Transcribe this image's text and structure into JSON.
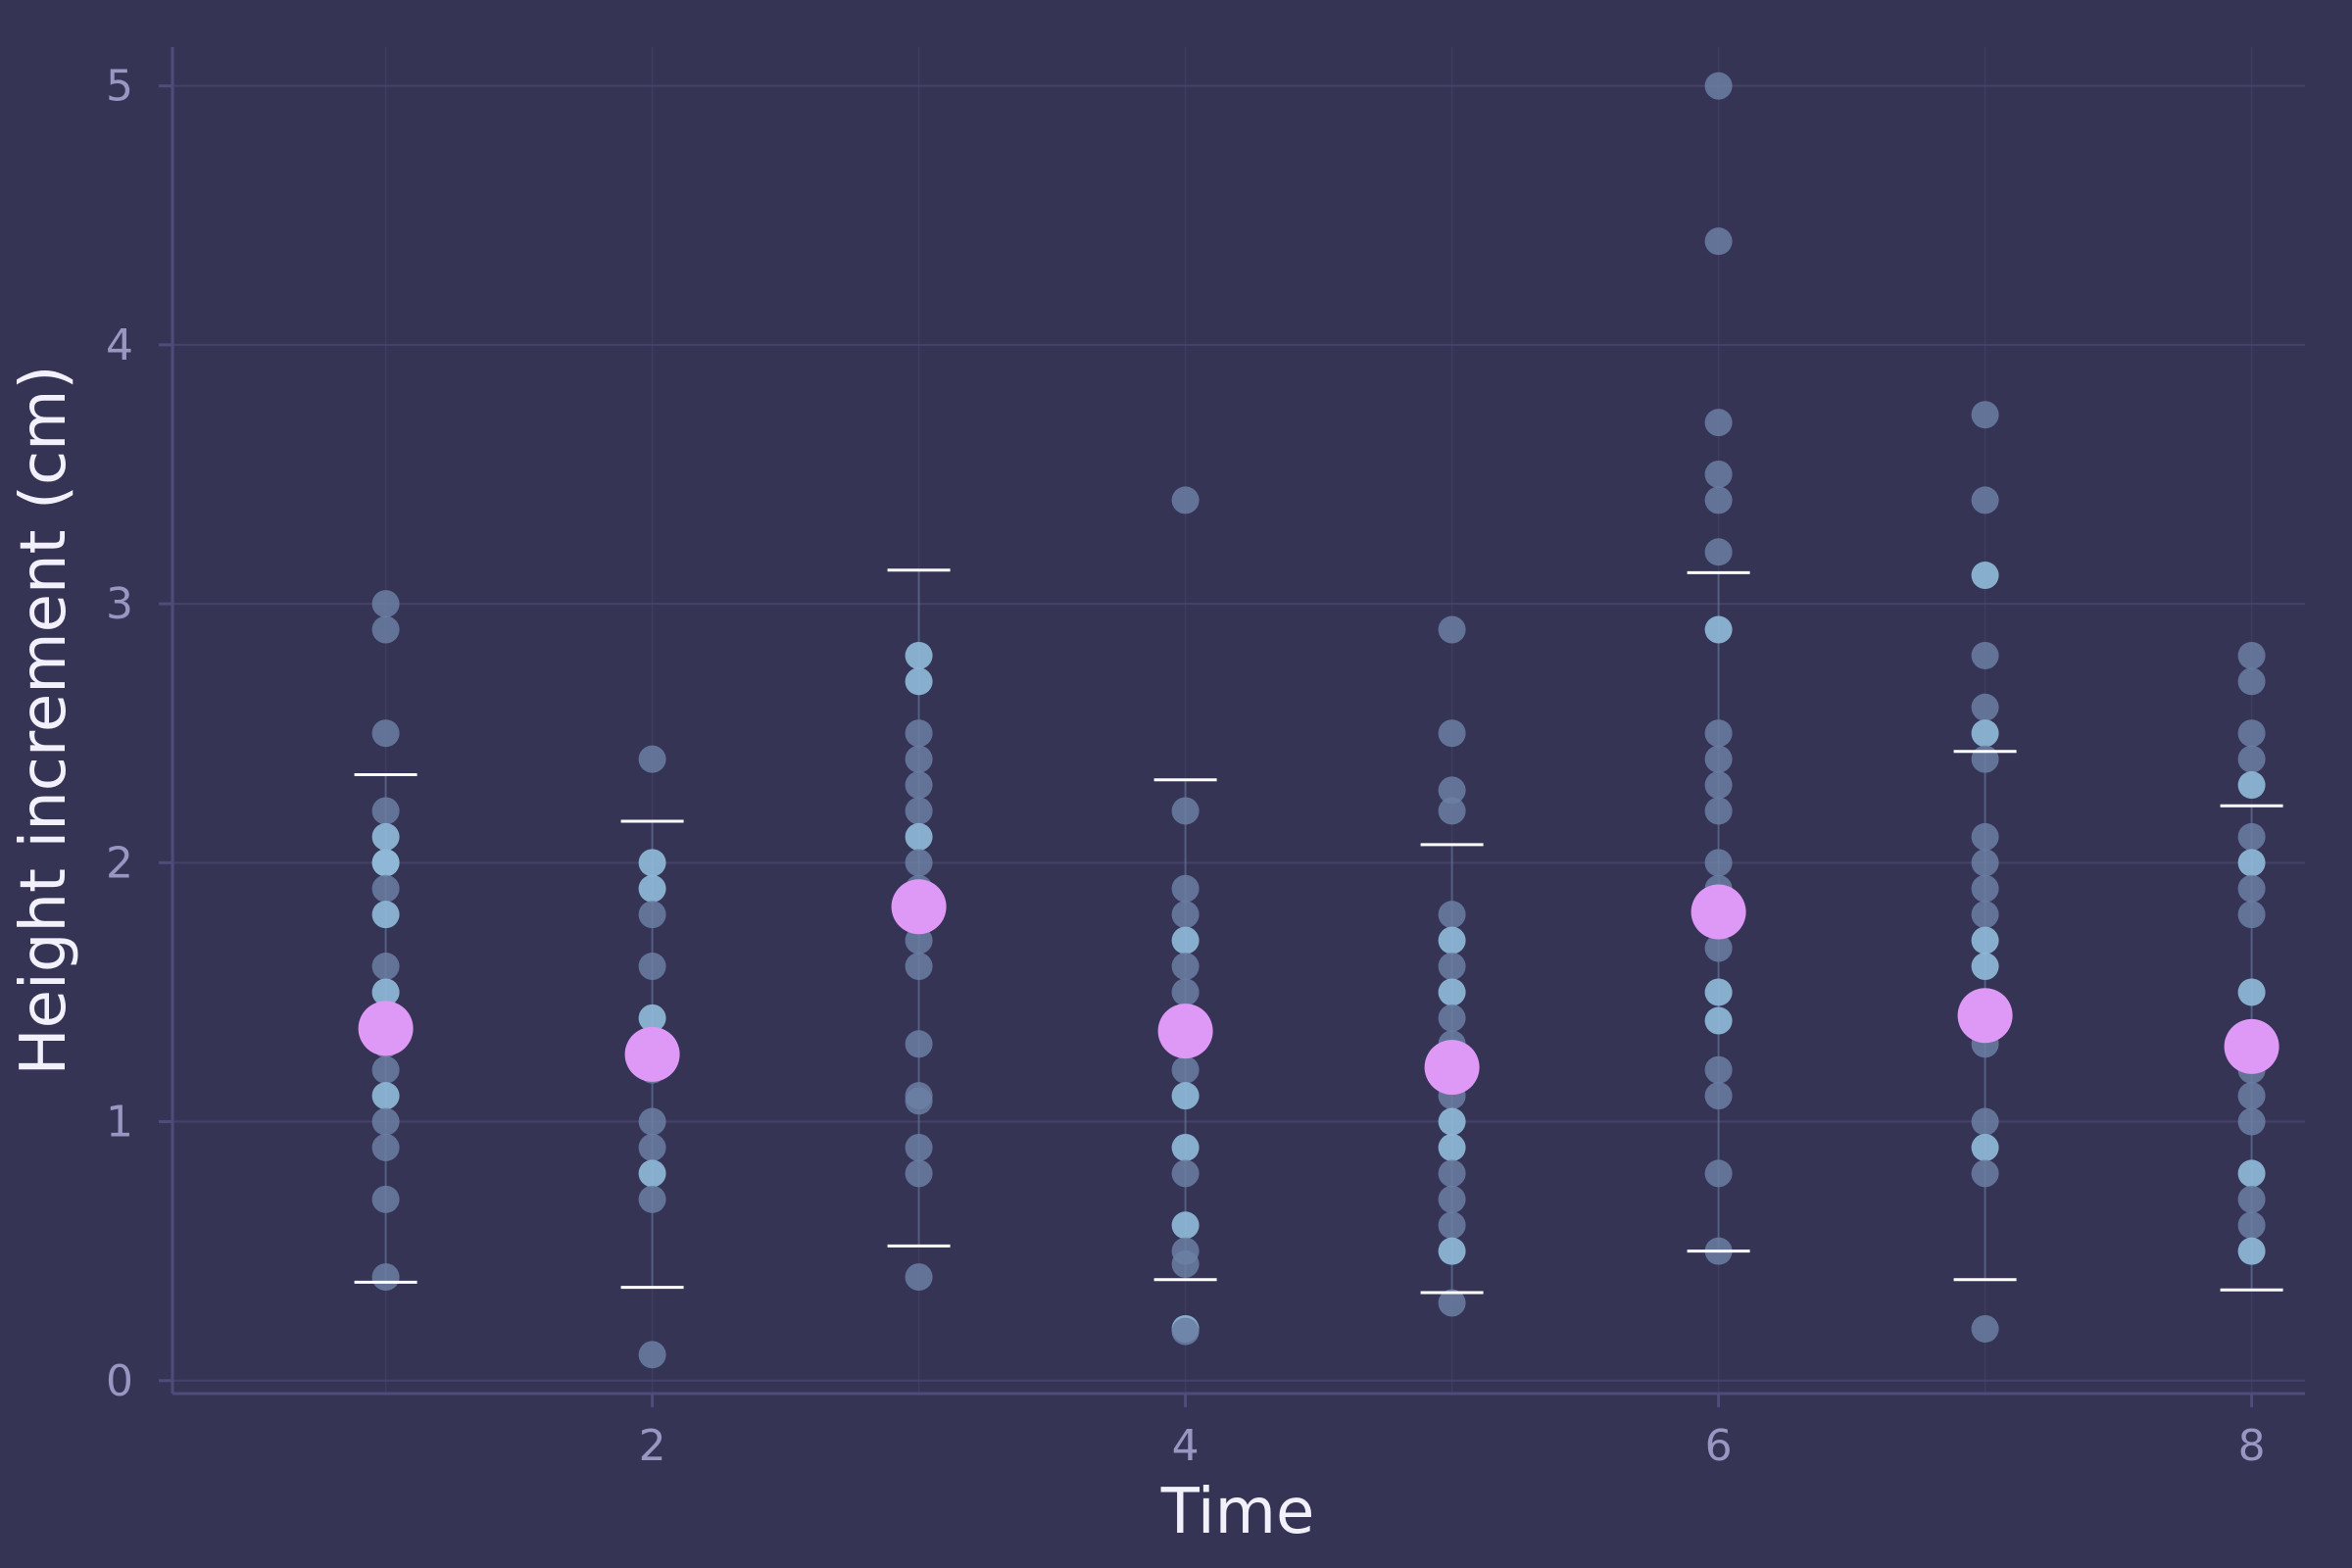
{
  "chart_data": {
    "type": "scatter",
    "title": "",
    "xlabel": "Time",
    "ylabel": "Height increment (cm)",
    "xlim": [
      0.2,
      8.2
    ],
    "ylim": [
      -0.05,
      5.15
    ],
    "xticks": [
      "2",
      "4",
      "6",
      "8"
    ],
    "yticks": [
      "0",
      "1",
      "2",
      "3",
      "4",
      "5"
    ],
    "grid": true,
    "legend": "none",
    "colors": {
      "background": "#363455",
      "grid": "#45426a",
      "axis": "#4f4b7a",
      "tick_label": "#9a96c2",
      "title": "#f2f0fb",
      "point": "#6b7fa3",
      "point_highlight": "#8fb8d8",
      "mean": "#dd99f5",
      "range_marker": "#ffffff"
    },
    "groups": [
      {
        "x": 1,
        "mean": 1.36,
        "lower": 0.38,
        "upper": 2.34,
        "values": [
          3.0,
          2.9,
          2.5,
          2.2,
          2.1,
          2.0,
          2.0,
          1.9,
          1.8,
          1.6,
          1.5,
          1.3,
          1.2,
          1.1,
          1.0,
          0.9,
          0.7,
          0.4
        ],
        "highlighted": [
          2.1,
          2.0,
          1.8,
          1.5,
          1.1
        ]
      },
      {
        "x": 2,
        "mean": 1.26,
        "lower": 0.36,
        "upper": 2.16,
        "values": [
          2.4,
          2.0,
          1.9,
          1.8,
          1.6,
          1.4,
          1.2,
          1.0,
          0.9,
          0.8,
          0.7,
          0.1
        ],
        "highlighted": [
          2.0,
          1.9,
          1.4,
          0.8
        ]
      },
      {
        "x": 3,
        "mean": 1.83,
        "lower": 0.52,
        "upper": 3.13,
        "values": [
          2.8,
          2.7,
          2.5,
          2.4,
          2.3,
          2.2,
          2.1,
          2.0,
          1.9,
          1.7,
          1.6,
          1.3,
          1.1,
          1.08,
          0.9,
          0.8,
          0.4
        ],
        "highlighted": [
          2.8,
          2.7,
          2.1
        ]
      },
      {
        "x": 4,
        "mean": 1.35,
        "lower": 0.39,
        "upper": 2.32,
        "values": [
          3.4,
          2.2,
          1.9,
          1.8,
          1.7,
          1.6,
          1.5,
          1.2,
          1.1,
          0.9,
          0.8,
          0.6,
          0.5,
          0.45,
          0.2,
          0.19
        ],
        "highlighted": [
          1.7,
          1.1,
          0.9,
          0.6,
          0.2
        ]
      },
      {
        "x": 5,
        "mean": 1.21,
        "lower": 0.34,
        "upper": 2.07,
        "values": [
          2.9,
          2.5,
          2.28,
          2.2,
          1.8,
          1.7,
          1.6,
          1.5,
          1.4,
          1.3,
          1.1,
          1.0,
          0.9,
          0.8,
          0.7,
          0.6,
          0.5,
          0.3
        ],
        "highlighted": [
          1.7,
          1.5,
          1.0,
          0.9,
          0.5
        ]
      },
      {
        "x": 6,
        "mean": 1.81,
        "lower": 0.5,
        "upper": 3.12,
        "values": [
          5.0,
          4.4,
          3.7,
          3.5,
          3.4,
          3.2,
          2.9,
          2.5,
          2.4,
          2.3,
          2.2,
          2.0,
          1.9,
          1.67,
          1.5,
          1.39,
          1.2,
          1.1,
          0.8,
          0.5
        ],
        "highlighted": [
          2.9,
          1.5,
          1.39
        ]
      },
      {
        "x": 7,
        "mean": 1.41,
        "lower": 0.39,
        "upper": 2.43,
        "values": [
          3.73,
          3.4,
          3.11,
          2.8,
          2.6,
          2.5,
          2.4,
          2.1,
          2.0,
          1.9,
          1.8,
          1.7,
          1.6,
          1.3,
          1.0,
          0.9,
          0.8,
          0.2
        ],
        "highlighted": [
          3.11,
          2.5,
          1.7,
          1.6,
          0.9
        ]
      },
      {
        "x": 8,
        "mean": 1.29,
        "lower": 0.35,
        "upper": 2.22,
        "values": [
          2.8,
          2.7,
          2.5,
          2.4,
          2.3,
          2.1,
          2.0,
          1.9,
          1.8,
          1.5,
          1.2,
          1.1,
          1.0,
          0.8,
          0.7,
          0.6,
          0.5
        ],
        "highlighted": [
          2.3,
          2.0,
          1.5,
          0.8,
          0.5
        ]
      }
    ]
  }
}
